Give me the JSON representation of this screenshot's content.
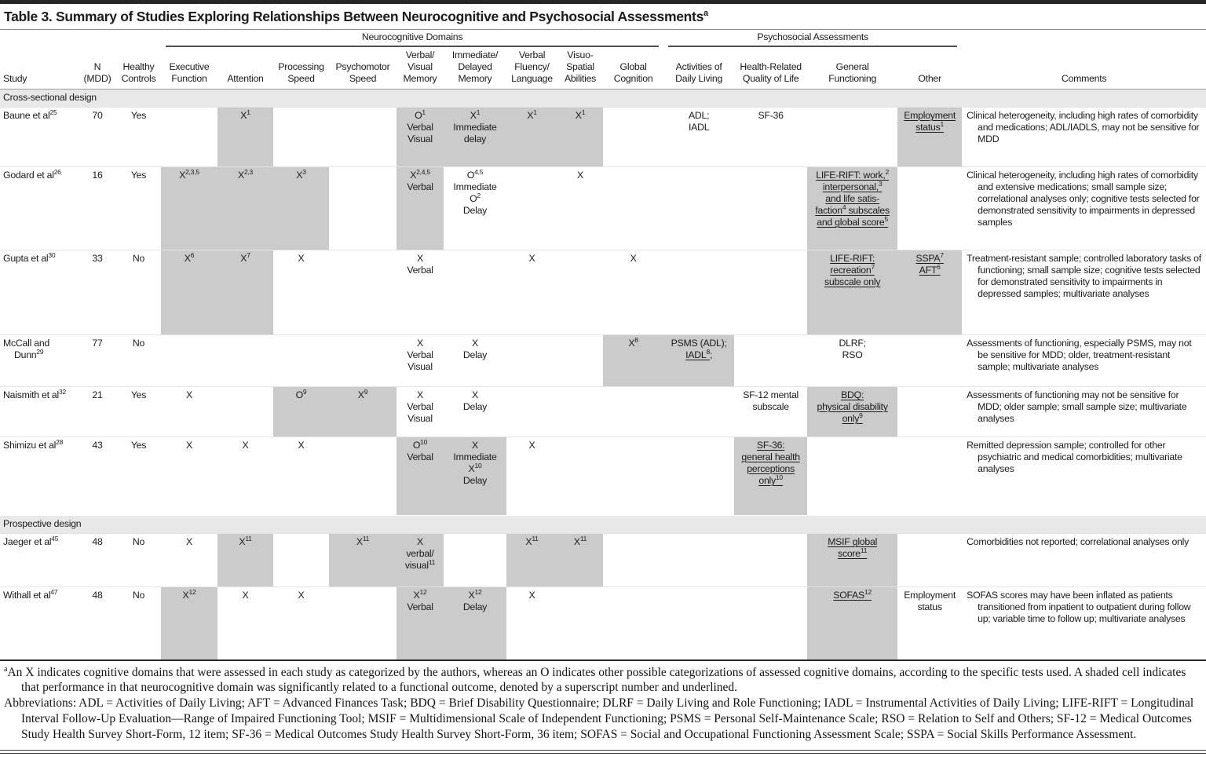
{
  "title": {
    "text": "Table 3. Summary of Studies Exploring Relationships Between Neurocognitive and Psychosocial Assessments",
    "sup": "a"
  },
  "groups": {
    "neuro": "Neurocognitive Domains",
    "psycho": "Psychosocial Assessments"
  },
  "columns": [
    {
      "key": "study",
      "label": "Study"
    },
    {
      "key": "n",
      "label": "N|(MDD)"
    },
    {
      "key": "hc",
      "label": "Healthy|Controls"
    },
    {
      "key": "exec",
      "label": "Executive|Function"
    },
    {
      "key": "attn",
      "label": "Attention"
    },
    {
      "key": "proc",
      "label": "Processing|Speed"
    },
    {
      "key": "psych",
      "label": "Psychomotor|Speed"
    },
    {
      "key": "vvmem",
      "label": "Verbal/|Visual|Memory"
    },
    {
      "key": "idmem",
      "label": "Immediate/|Delayed|Memory"
    },
    {
      "key": "vflang",
      "label": "Verbal|Fluency/|Language"
    },
    {
      "key": "vspat",
      "label": "Visuo-|Spatial|Abilities"
    },
    {
      "key": "glob",
      "label": "Global|Cognition"
    },
    {
      "key": "adl",
      "label": "Activities of|Daily Living"
    },
    {
      "key": "hrqol",
      "label": "Health-Related|Quality of Life"
    },
    {
      "key": "genfun",
      "label": "General|Functioning"
    },
    {
      "key": "other",
      "label": "Other"
    },
    {
      "key": "comments",
      "label": "Comments"
    }
  ],
  "rows": [
    {
      "type": "section",
      "label": "Cross-sectional design"
    },
    {
      "type": "study",
      "cells": {
        "study": {
          "m": "Baune et al^25"
        },
        "n": {
          "m": "70"
        },
        "hc": {
          "m": "Yes"
        },
        "attn": {
          "m": "X^1",
          "s": true
        },
        "vvmem": {
          "m": "O^1|Verbal|Visual",
          "s": true
        },
        "idmem": {
          "m": "X^1|Immediate|delay",
          "s": true
        },
        "vflang": {
          "m": "X^1",
          "s": true
        },
        "vspat": {
          "m": "X^1",
          "s": true
        },
        "adl": {
          "m": "ADL;|IADL"
        },
        "hrqol": {
          "m": "SF-36"
        },
        "other": {
          "m": "[u]Employment|status^1[/u]",
          "s": true
        },
        "comments": {
          "m": "Clinical heterogeneity, including high rates of comorbidity and medications; ADL/IADLS, may not be sensitive for MDD"
        }
      }
    },
    {
      "type": "study",
      "cells": {
        "study": {
          "m": "Godard et al^26"
        },
        "n": {
          "m": "16"
        },
        "hc": {
          "m": "Yes"
        },
        "exec": {
          "m": "X^2,3,5",
          "s": true
        },
        "attn": {
          "m": "X^2,3",
          "s": true
        },
        "proc": {
          "m": "X^3",
          "s": true
        },
        "vvmem": {
          "m": "X^2,4,5|Verbal",
          "s": true
        },
        "idmem": {
          "m": "O^4,5|Immediate|O^2|Delay"
        },
        "vspat": {
          "m": "X"
        },
        "genfun": {
          "m": "[u]LIFE-RIFT: work,^2|interpersonal,^3|and life satis-|faction^4 subscales|and global score^5[/u]",
          "s": true
        },
        "comments": {
          "m": "Clinical heterogeneity, including high rates of comorbidity and extensive medications; small sample size; correlational analyses only; cognitive tests selected for demonstrated sensitivity to impairments in depressed samples"
        }
      }
    },
    {
      "type": "study",
      "cells": {
        "study": {
          "m": "Gupta et al^30"
        },
        "n": {
          "m": "33"
        },
        "hc": {
          "m": "No"
        },
        "exec": {
          "m": "X^6",
          "s": true
        },
        "attn": {
          "m": "X^7",
          "s": true
        },
        "proc": {
          "m": "X"
        },
        "vvmem": {
          "m": "X|Verbal"
        },
        "vflang": {
          "m": "X"
        },
        "glob": {
          "m": "X"
        },
        "genfun": {
          "m": "[u]LIFE-RIFT:|recreation^7|subscale only[/u]",
          "s": true
        },
        "other": {
          "m": "[u]SSPA^7|AFT^6[/u]",
          "s": true
        },
        "comments": {
          "m": "Treatment-resistant sample; controlled laboratory tasks of functioning; small sample size; cognitive tests selected for demonstrated sensitivity to impairments in depressed samples; multivariate analyses"
        }
      }
    },
    {
      "type": "study",
      "cells": {
        "study": {
          "m": "McCall and|Dunn^29"
        },
        "n": {
          "m": "77"
        },
        "hc": {
          "m": "No"
        },
        "vvmem": {
          "m": "X|Verbal|Visual"
        },
        "idmem": {
          "m": "X|Delay"
        },
        "glob": {
          "m": "X^8",
          "s": true
        },
        "adl": {
          "m": "PSMS (ADL);|[u]IADL^8[/u];",
          "s": true
        },
        "genfun": {
          "m": "DLRF;|RSO"
        },
        "comments": {
          "m": "Assessments of functioning, especially PSMS, may not be sensitive for MDD; older, treatment-resistant sample; multivariate analyses"
        }
      }
    },
    {
      "type": "study",
      "cells": {
        "study": {
          "m": "Naismith et al^32"
        },
        "n": {
          "m": "21"
        },
        "hc": {
          "m": "Yes"
        },
        "exec": {
          "m": "X"
        },
        "proc": {
          "m": "O^9",
          "s": true
        },
        "psych": {
          "m": "X^9",
          "s": true
        },
        "vvmem": {
          "m": "X|Verbal|Visual"
        },
        "idmem": {
          "m": "X|Delay"
        },
        "hrqol": {
          "m": "SF-12 mental|subscale"
        },
        "genfun": {
          "m": "[u]BDQ:|physical disability|only^9[/u]",
          "s": true
        },
        "comments": {
          "m": "Assessments of functioning may not be sensitive for MDD; older sample; small sample size; multivariate analyses"
        }
      }
    },
    {
      "type": "study",
      "cells": {
        "study": {
          "m": "Shimizu et al^28"
        },
        "n": {
          "m": "43"
        },
        "hc": {
          "m": "Yes"
        },
        "exec": {
          "m": "X"
        },
        "attn": {
          "m": "X"
        },
        "proc": {
          "m": "X"
        },
        "vvmem": {
          "m": "O^10|Verbal",
          "s": true
        },
        "idmem": {
          "m": "X|Immediate|X^10|Delay",
          "s": true
        },
        "vflang": {
          "m": "X"
        },
        "hrqol": {
          "m": "[u]SF-36:|general health|perceptions|only^10[/u]",
          "s": true
        },
        "comments": {
          "m": "Remitted depression sample; controlled for other psychiatric and medical comorbidities; multivariate analyses"
        }
      }
    },
    {
      "type": "section",
      "label": "Prospective design"
    },
    {
      "type": "study",
      "cells": {
        "study": {
          "m": "Jaeger et al^45"
        },
        "n": {
          "m": "48"
        },
        "hc": {
          "m": "No"
        },
        "exec": {
          "m": "X"
        },
        "attn": {
          "m": "X^11",
          "s": true
        },
        "psych": {
          "m": "X^11",
          "s": true
        },
        "vvmem": {
          "m": "X|verbal/|visual^11",
          "s": true
        },
        "vflang": {
          "m": "X^11",
          "s": true
        },
        "vspat": {
          "m": "X^11",
          "s": true
        },
        "genfun": {
          "m": "[u]MSIF global|score^11[/u]",
          "s": true
        },
        "comments": {
          "m": "Comorbidities not reported; correlational analyses only"
        }
      }
    },
    {
      "type": "study",
      "cells": {
        "study": {
          "m": "Withall et al^47"
        },
        "n": {
          "m": "48"
        },
        "hc": {
          "m": "No"
        },
        "exec": {
          "m": "X^12",
          "s": true
        },
        "attn": {
          "m": "X"
        },
        "proc": {
          "m": "X"
        },
        "vvmem": {
          "m": "X^12|Verbal",
          "s": true
        },
        "idmem": {
          "m": "X^12|Delay",
          "s": true
        },
        "vflang": {
          "m": "X"
        },
        "genfun": {
          "m": "[u]SOFAS^12[/u]",
          "s": true
        },
        "other": {
          "m": "Employment|status"
        },
        "comments": {
          "m": "SOFAS scores may have been inflated as patients transitioned from inpatient to outpatient during follow up; variable time to follow up; multivariate analyses"
        }
      }
    }
  ],
  "footnotes": [
    {
      "sup": "a",
      "text": "An X indicates cognitive domains that were assessed in each study as categorized by the authors, whereas an O indicates other possible categorizations of assessed cognitive domains, according to the specific tests used. A shaded cell indicates that performance in that neurocognitive domain was significantly related to a functional outcome, denoted by a superscript number and underlined."
    },
    {
      "sup": "",
      "text": "Abbreviations: ADL = Activities of Daily Living; AFT = Advanced Finances Task; BDQ = Brief Disability Questionnaire; DLRF = Daily Living and Role Functioning; IADL = Instrumental Activities of Daily Living; LIFE-RIFT = Longitudinal Interval Follow-Up Evaluation—Range of Impaired Functioning Tool; MSIF = Multidimensional Scale of Independent Functioning; PSMS = Personal Self-Maintenance Scale; RSO = Relation to Self and Others; SF-12 = Medical Outcomes Study Health Survey Short-Form, 12 item; SF-36 = Medical Outcomes Study Health Survey Short-Form, 36 item; SOFAS = Social and Occupational Functioning Assessment Scale; SSPA = Social Skills Performance Assessment."
    }
  ]
}
